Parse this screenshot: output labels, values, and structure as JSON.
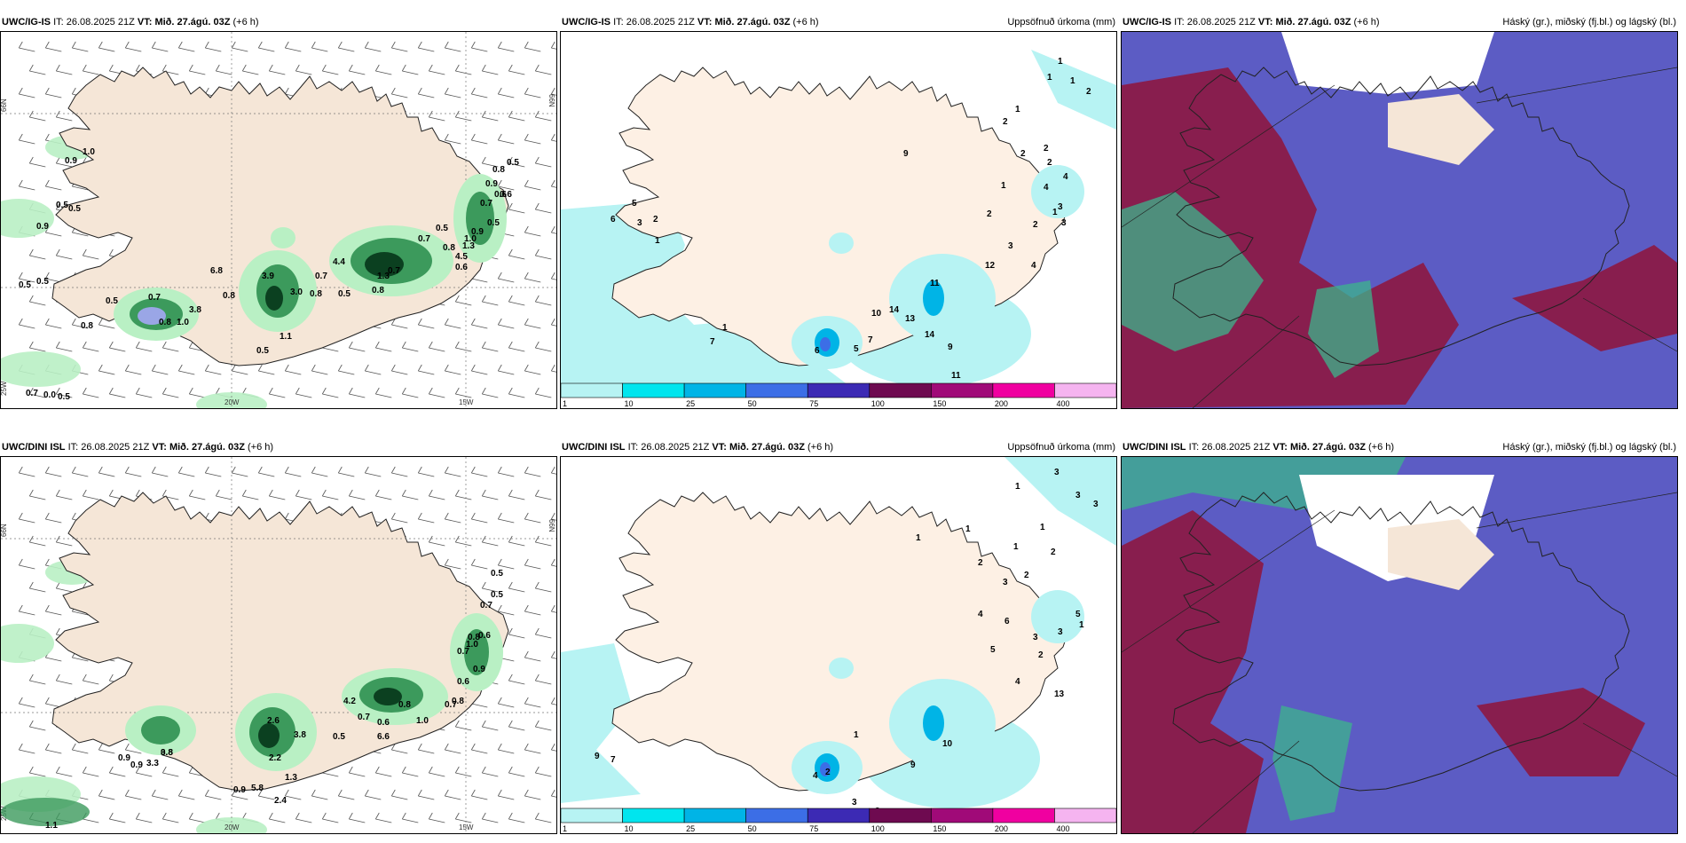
{
  "panels": [
    {
      "model": "UWC/IG-IS",
      "it_label": "IT:",
      "it_value": "26.08.2025 21Z",
      "vt_label": "VT:",
      "vt_value": "Mið. 27.ágú. 03Z",
      "lead": "(+6 h)",
      "right_title": "",
      "lat_labels": [
        "66N",
        "65N",
        "64N"
      ],
      "lon_labels": [
        "25W",
        "20W",
        "15W"
      ],
      "values": [
        "0.9",
        "1.0",
        "0.5",
        "0.9",
        "0.5",
        "0.5",
        "0.5",
        "0.8",
        "0.5",
        "0.7",
        "0.8",
        "1.0",
        "3.8",
        "6.8",
        "3.9",
        "3.0",
        "0.8",
        "0.5",
        "1.1",
        "0.7",
        "0.5",
        "4.4",
        "0.8",
        "0.7",
        "1.3",
        "0.7",
        "0.5",
        "0.8",
        "4.5",
        "1.3",
        "0.9",
        "0.7",
        "0.9",
        "0.8",
        "0.6",
        "0.5",
        "0.6",
        "0.5",
        "1.0",
        "0.6",
        "0.8",
        "0.7",
        "0.0",
        "0.5"
      ]
    },
    {
      "model": "UWC/IG-IS",
      "it_label": "IT:",
      "it_value": "26.08.2025 21Z",
      "vt_label": "VT:",
      "vt_value": "Mið. 27.ágú. 03Z",
      "lead": "(+6 h)",
      "right_title": "Uppsöfnuð úrkoma (mm)",
      "values": [
        "1",
        "1",
        "1",
        "2",
        "1",
        "2",
        "2",
        "9",
        "1",
        "2",
        "4",
        "4",
        "1",
        "2",
        "3",
        "4",
        "12",
        "11",
        "10",
        "7",
        "5",
        "6",
        "7",
        "1",
        "14",
        "13",
        "14",
        "9",
        "11",
        "3",
        "3",
        "2",
        "2",
        "5",
        "6",
        "3",
        "2",
        "1"
      ],
      "colorbar": {
        "ticks": [
          "1",
          "10",
          "25",
          "50",
          "75",
          "100",
          "150",
          "200",
          "400"
        ],
        "colors": [
          "#b7f3f3",
          "#00e5ee",
          "#00b4e6",
          "#3c6ee6",
          "#3c2ab4",
          "#6e0a50",
          "#a00a78",
          "#f000a0",
          "#f5b4f0"
        ]
      }
    },
    {
      "model": "UWC/IG-IS",
      "it_label": "IT:",
      "it_value": "26.08.2025 21Z",
      "vt_label": "VT:",
      "vt_value": "Mið. 27.ágú. 03Z",
      "lead": "(+6 h)",
      "right_title": "Háský (gr.), miðský (fj.bl.) og lágský (bl.)"
    },
    {
      "model": "UWC/DINI ISL",
      "it_label": "IT:",
      "it_value": "26.08.2025 21Z",
      "vt_label": "VT:",
      "vt_value": "Mið. 27.ágú. 03Z",
      "lead": "(+6 h)",
      "right_title": "",
      "lat_labels": [
        "66N",
        "65N",
        "64N"
      ],
      "lon_labels": [
        "25W",
        "20W",
        "15W"
      ],
      "values": [
        "0.5",
        "0.7",
        "0.5",
        "0.6",
        "1.0",
        "0.8",
        "0.7",
        "0.9",
        "0.6",
        "0.8",
        "0.7",
        "1.0",
        "0.8",
        "0.6",
        "0.7",
        "4.2",
        "6.6",
        "2.6",
        "2.2",
        "3.8",
        "0.9",
        "0.5",
        "1.3",
        "2.4",
        "3.8",
        "0.8",
        "3.3",
        "0.9",
        "5.8",
        "0.9",
        "1.1"
      ]
    },
    {
      "model": "UWC/DINI ISL",
      "it_label": "IT:",
      "it_value": "26.08.2025 21Z",
      "vt_label": "VT:",
      "vt_value": "Mið. 27.ágú. 03Z",
      "lead": "(+6 h)",
      "right_title": "Uppsöfnuð úrkoma (mm)",
      "values": [
        "1",
        "3",
        "3",
        "3",
        "1",
        "1",
        "1",
        "2",
        "1",
        "2",
        "2",
        "3",
        "4",
        "5",
        "6",
        "3",
        "2",
        "1",
        "5",
        "3",
        "4",
        "13",
        "10",
        "2",
        "4",
        "9",
        "9",
        "7",
        "1",
        "1",
        "3",
        "2",
        "1"
      ],
      "colorbar": {
        "ticks": [
          "1",
          "10",
          "25",
          "50",
          "75",
          "100",
          "150",
          "200",
          "400"
        ],
        "colors": [
          "#b7f3f3",
          "#00e5ee",
          "#00b4e6",
          "#3c6ee6",
          "#3c2ab4",
          "#6e0a50",
          "#a00a78",
          "#f000a0",
          "#f5b4f0"
        ]
      }
    },
    {
      "model": "UWC/DINI ISL",
      "it_label": "IT:",
      "it_value": "26.08.2025 21Z",
      "vt_label": "VT:",
      "vt_value": "Mið. 27.ágú. 03Z",
      "lead": "(+6 h)",
      "right_title": "Háský (gr.), miðský (fj.bl.) og lágský (bl.)"
    }
  ],
  "colors": {
    "land": "#f5e6d7",
    "land_precip": "#fdf0e4",
    "light_precip": "#b9f0c4",
    "mid_precip": "#3c9a5c",
    "heavy_precip": "#0b4020",
    "extreme_precip": "#9aa6e6",
    "precip_light_cyan": "#b7f3f3",
    "cloud_low": "#5c5cc4",
    "cloud_mid": "#8a1a48",
    "cloud_high": "#3cb48c"
  }
}
